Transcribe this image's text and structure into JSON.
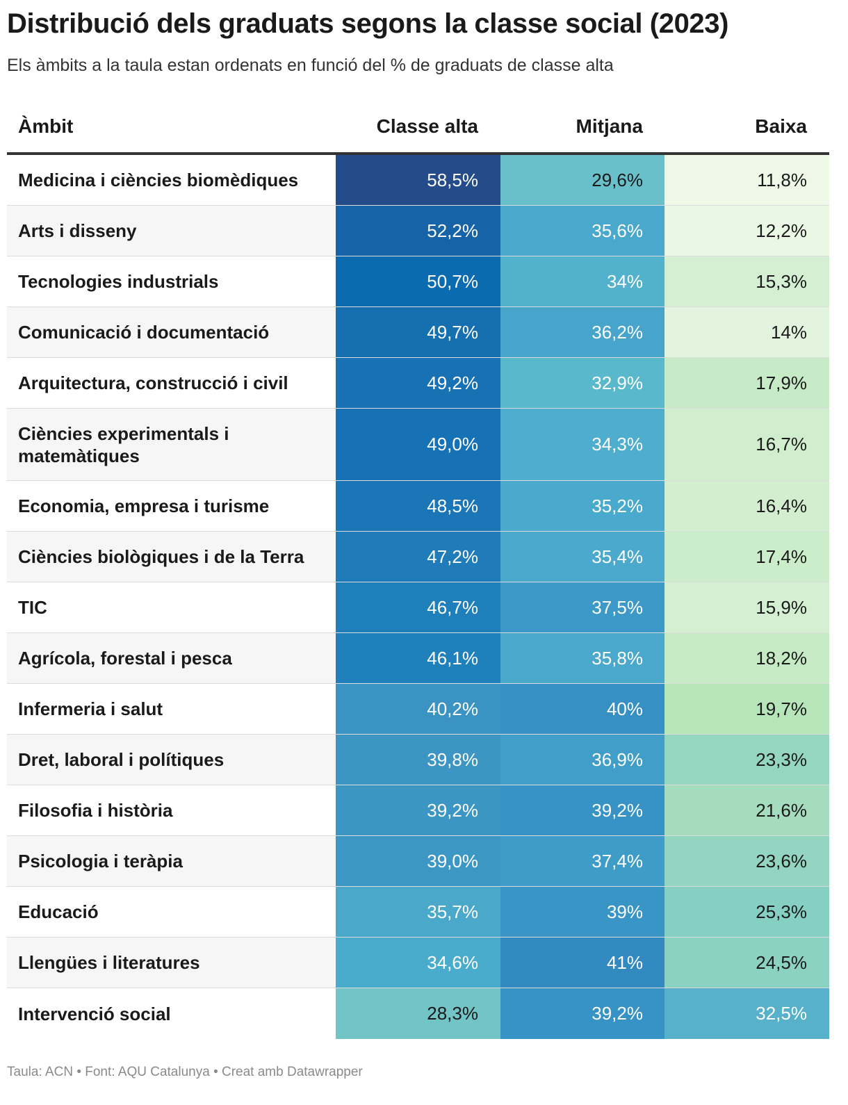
{
  "title": "Distribució dels graduats segons la classe social (2023)",
  "subtitle": "Els àmbits a la taula estan ordenats en funció del % de graduats de classe alta",
  "footer": "Taula: ACN • Font: AQU Catalunya • Creat amb Datawrapper",
  "colors": {
    "alta": [
      "#244b8a",
      "#1763a8",
      "#0b6bb0",
      "#1670b0",
      "#1771b3",
      "#1772b5",
      "#1a76b6",
      "#1f7cb8",
      "#1f7fba",
      "#2080bb",
      "#3a93c2",
      "#3c95c3",
      "#3c96c4",
      "#3d97c5",
      "#4aa8cb",
      "#4aaccd",
      "#73c4c6"
    ],
    "mitjana": [
      "#69bfca",
      "#4aa8cd",
      "#52b1cd",
      "#47a4ca",
      "#5ab8cc",
      "#4faecd",
      "#4aaacd",
      "#4ba9cd",
      "#3d9ac8",
      "#4aa8cd",
      "#3690c3",
      "#409ec9",
      "#3793c5",
      "#3e9cc9",
      "#3895c5",
      "#338ac1",
      "#3793c5"
    ],
    "baixa": [
      "#edf8e7",
      "#ebf7e5",
      "#d5efd3",
      "#e2f4dd",
      "#c8ebc7",
      "#d0eecd",
      "#d2eecf",
      "#cbedc9",
      "#d4efd2",
      "#c5eac4",
      "#b7e5ba",
      "#95d6c0",
      "#a5dcbe",
      "#93d5c1",
      "#86d0c3",
      "#8cd2c2",
      "#58b1cb"
    ],
    "text_light": "#ffffff",
    "text_dark": "#1a1a1a"
  },
  "chart_data": {
    "type": "table",
    "title": "Distribució dels graduats segons la classe social (2023)",
    "columns": [
      "Àmbit",
      "Classe alta",
      "Mitjana",
      "Baixa"
    ],
    "rows": [
      {
        "ambit": "Medicina i ciències biomèdiques",
        "alta": "58,5%",
        "mitjana": "29,6%",
        "baixa": "11,8%"
      },
      {
        "ambit": "Arts i disseny",
        "alta": "52,2%",
        "mitjana": "35,6%",
        "baixa": "12,2%"
      },
      {
        "ambit": "Tecnologies industrials",
        "alta": "50,7%",
        "mitjana": "34%",
        "baixa": "15,3%"
      },
      {
        "ambit": "Comunicació i documentació",
        "alta": "49,7%",
        "mitjana": "36,2%",
        "baixa": "14%"
      },
      {
        "ambit": "Arquitectura, construcció i civil",
        "alta": "49,2%",
        "mitjana": "32,9%",
        "baixa": "17,9%"
      },
      {
        "ambit": "Ciències experimentals i matemàtiques",
        "alta": "49,0%",
        "mitjana": "34,3%",
        "baixa": "16,7%"
      },
      {
        "ambit": "Economia, empresa i turisme",
        "alta": "48,5%",
        "mitjana": "35,2%",
        "baixa": "16,4%"
      },
      {
        "ambit": "Ciències biològiques i de la Terra",
        "alta": "47,2%",
        "mitjana": "35,4%",
        "baixa": "17,4%"
      },
      {
        "ambit": "TIC",
        "alta": "46,7%",
        "mitjana": "37,5%",
        "baixa": "15,9%"
      },
      {
        "ambit": "Agrícola, forestal i pesca",
        "alta": "46,1%",
        "mitjana": "35,8%",
        "baixa": "18,2%"
      },
      {
        "ambit": "Infermeria i salut",
        "alta": "40,2%",
        "mitjana": "40%",
        "baixa": "19,7%"
      },
      {
        "ambit": "Dret, laboral i polítiques",
        "alta": "39,8%",
        "mitjana": "36,9%",
        "baixa": "23,3%"
      },
      {
        "ambit": "Filosofia i història",
        "alta": "39,2%",
        "mitjana": "39,2%",
        "baixa": "21,6%"
      },
      {
        "ambit": "Psicologia i teràpia",
        "alta": "39,0%",
        "mitjana": "37,4%",
        "baixa": "23,6%"
      },
      {
        "ambit": "Educació",
        "alta": "35,7%",
        "mitjana": "39%",
        "baixa": "25,3%"
      },
      {
        "ambit": "Llengües i literatures",
        "alta": "34,6%",
        "mitjana": "41%",
        "baixa": "24,5%"
      },
      {
        "ambit": "Intervenció social",
        "alta": "28,3%",
        "mitjana": "39,2%",
        "baixa": "32,5%"
      }
    ]
  }
}
